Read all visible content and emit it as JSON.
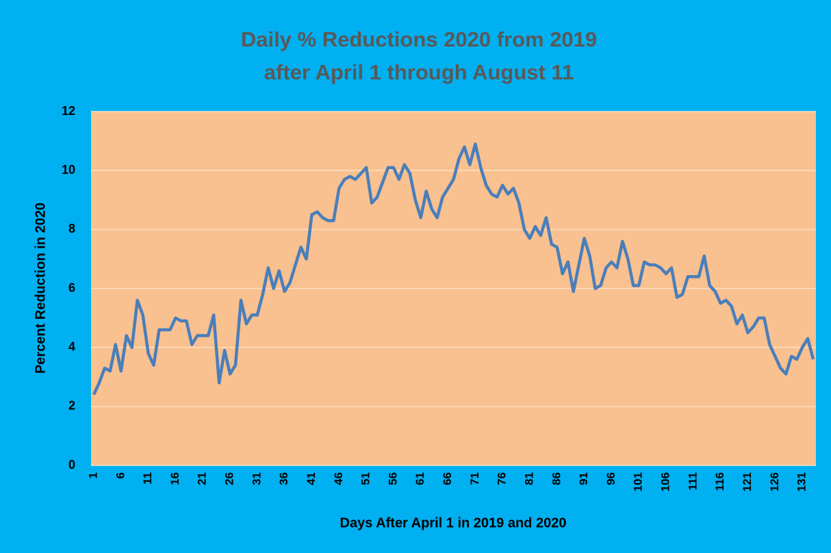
{
  "chart_data": {
    "type": "line",
    "title": "Daily % Reductions 2020 from 2019",
    "subtitle": "after April 1 through August 11",
    "x_label": "Days After April 1 in 2019 and 2020",
    "y_label": "Percent Reduction in 2020",
    "categories": [
      "1",
      null,
      null,
      null,
      null,
      "6",
      null,
      null,
      null,
      null,
      "11",
      null,
      null,
      null,
      null,
      "16",
      null,
      null,
      null,
      null,
      "21",
      null,
      null,
      null,
      null,
      "26",
      null,
      null,
      null,
      null,
      "31",
      null,
      null,
      null,
      null,
      "36",
      null,
      null,
      null,
      null,
      "41",
      null,
      null,
      null,
      null,
      "46",
      null,
      null,
      null,
      null,
      "51",
      null,
      null,
      null,
      null,
      "56",
      null,
      null,
      null,
      null,
      "61",
      null,
      null,
      null,
      null,
      "66",
      null,
      null,
      null,
      null,
      "71",
      null,
      null,
      null,
      null,
      "76",
      null,
      null,
      null,
      null,
      "81",
      null,
      null,
      null,
      null,
      "86",
      null,
      null,
      null,
      null,
      "91",
      null,
      null,
      null,
      null,
      "96",
      null,
      null,
      null,
      null,
      "101",
      null,
      null,
      null,
      null,
      "106",
      null,
      null,
      null,
      null,
      "111",
      null,
      null,
      null,
      null,
      "116",
      null,
      null,
      null,
      null,
      "121",
      null,
      null,
      null,
      null,
      "126",
      null,
      null,
      null,
      null,
      "131",
      null,
      null
    ],
    "values": [
      2.4,
      2.8,
      3.3,
      3.2,
      4.1,
      3.2,
      4.4,
      4.0,
      5.6,
      5.1,
      3.8,
      3.4,
      4.6,
      4.6,
      4.6,
      5.0,
      4.9,
      4.9,
      4.1,
      4.4,
      4.4,
      4.4,
      5.1,
      2.8,
      3.9,
      3.1,
      3.4,
      5.6,
      4.8,
      5.1,
      5.1,
      5.8,
      6.7,
      6.0,
      6.6,
      5.9,
      6.2,
      6.8,
      7.4,
      7.0,
      8.5,
      8.6,
      8.4,
      8.3,
      8.3,
      9.4,
      9.7,
      9.8,
      9.7,
      9.9,
      10.1,
      8.9,
      9.1,
      9.6,
      10.1,
      10.1,
      9.7,
      10.2,
      9.9,
      9.0,
      8.4,
      9.3,
      8.7,
      8.4,
      9.1,
      9.4,
      9.7,
      10.4,
      10.8,
      10.2,
      10.9,
      10.1,
      9.5,
      9.2,
      9.1,
      9.5,
      9.2,
      9.4,
      8.9,
      8.0,
      7.7,
      8.1,
      7.8,
      8.4,
      7.5,
      7.4,
      6.5,
      6.9,
      5.9,
      6.8,
      7.7,
      7.1,
      6.0,
      6.1,
      6.7,
      6.9,
      6.7,
      7.6,
      7.0,
      6.1,
      6.1,
      6.9,
      6.8,
      6.8,
      6.7,
      6.5,
      6.7,
      5.7,
      5.8,
      6.4,
      6.4,
      6.4,
      7.1,
      6.1,
      5.9,
      5.5,
      5.6,
      5.4,
      4.8,
      5.1,
      4.5,
      4.7,
      5.0,
      5.0,
      4.1,
      3.7,
      3.3,
      3.1,
      3.7,
      3.6,
      4.0,
      4.3,
      3.6
    ],
    "color": "#4a7ebb",
    "ylim": [
      0,
      12
    ],
    "yticks": [
      0,
      2,
      4,
      6,
      8,
      10,
      12
    ],
    "grid": true
  }
}
